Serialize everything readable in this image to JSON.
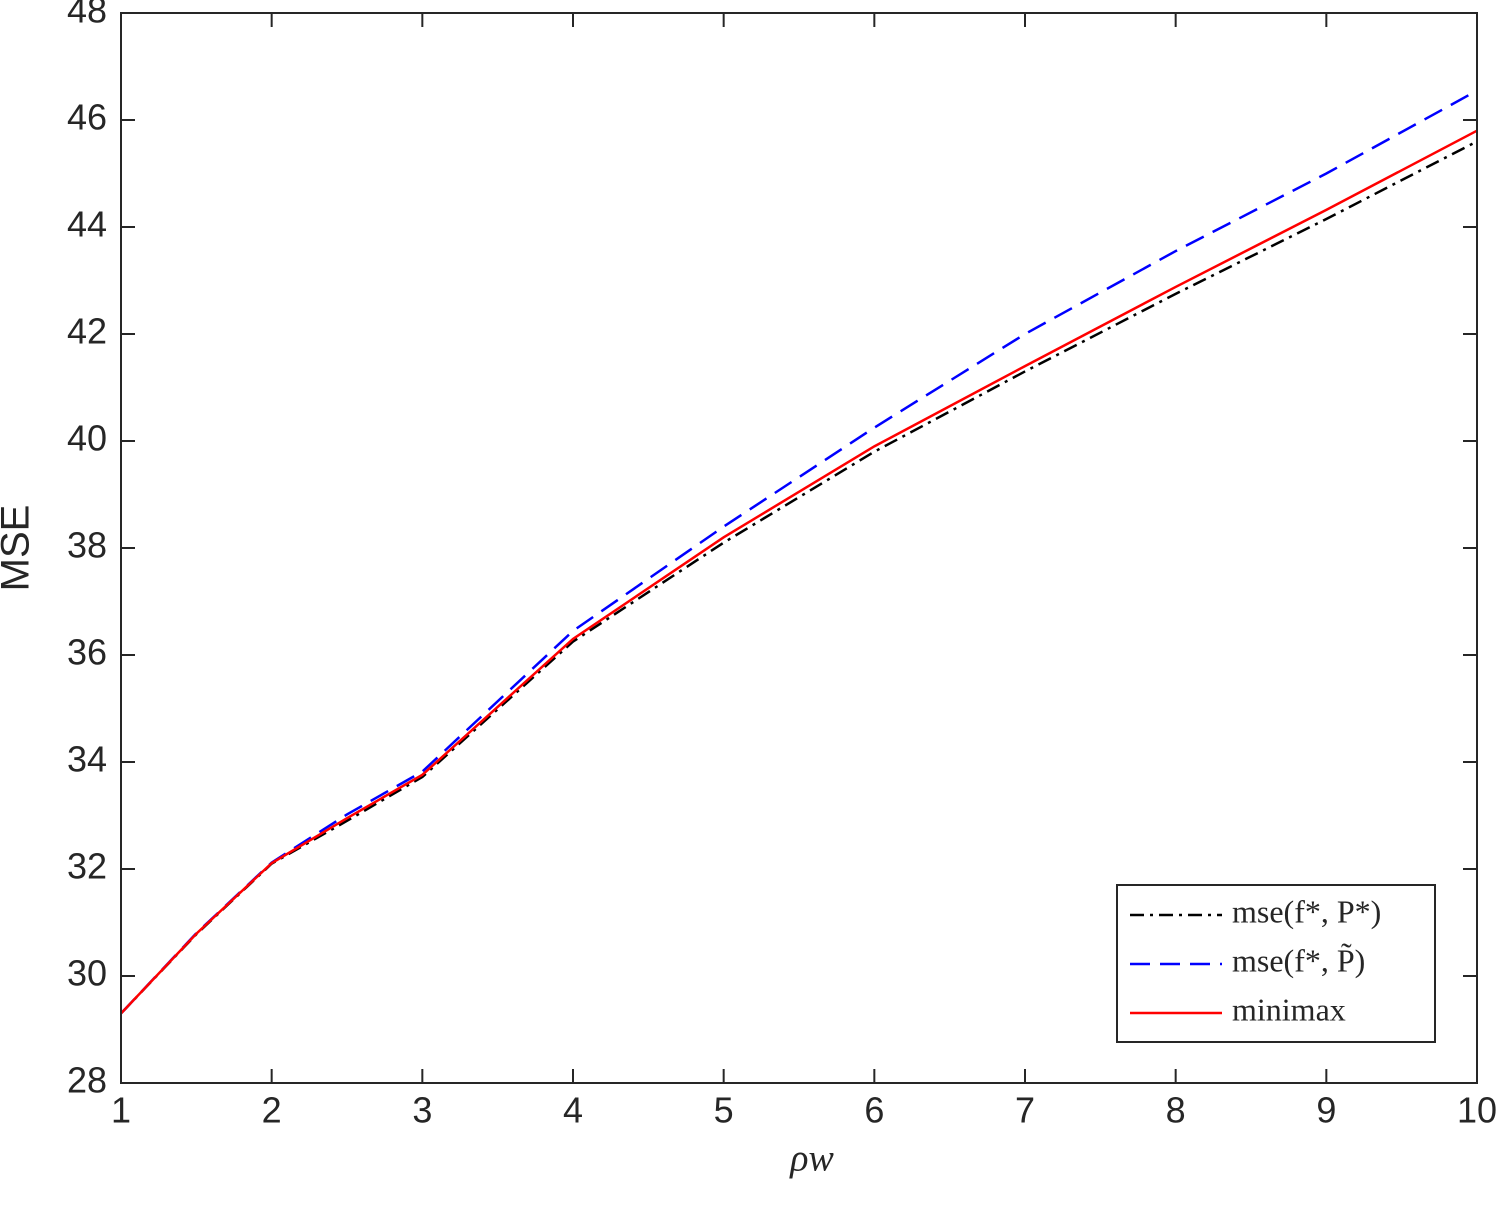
{
  "chart_data": {
    "type": "line",
    "x_label": "ρw",
    "y_label": "MSE",
    "x": [
      1,
      1.5,
      2,
      2.5,
      3,
      4,
      5,
      6,
      7,
      8,
      9,
      10
    ],
    "series": [
      {
        "name": "mse(f*, P*)",
        "color": "#000000",
        "dash": "dashdot",
        "values": [
          29.3,
          30.78,
          32.1,
          32.9,
          33.72,
          36.25,
          38.1,
          39.8,
          41.3,
          42.75,
          44.15,
          45.6
        ]
      },
      {
        "name": "mse(f*, P̃)",
        "color": "#0000ff",
        "dash": "dashed",
        "values": [
          29.3,
          30.8,
          32.12,
          33.02,
          33.82,
          36.45,
          38.4,
          40.25,
          42.0,
          43.55,
          45.0,
          46.55
        ]
      },
      {
        "name": "minimax",
        "color": "#ff0000",
        "dash": "solid",
        "values": [
          29.3,
          30.79,
          32.11,
          32.95,
          33.76,
          36.3,
          38.2,
          39.9,
          41.4,
          42.88,
          44.32,
          45.8
        ]
      }
    ],
    "xlim": [
      1,
      10
    ],
    "xticks": [
      1,
      2,
      3,
      4,
      5,
      6,
      7,
      8,
      9,
      10
    ],
    "ylim": [
      28,
      48
    ],
    "yticks": [
      28,
      30,
      32,
      34,
      36,
      38,
      40,
      42,
      44,
      46,
      48
    ],
    "legend": "lower right"
  }
}
